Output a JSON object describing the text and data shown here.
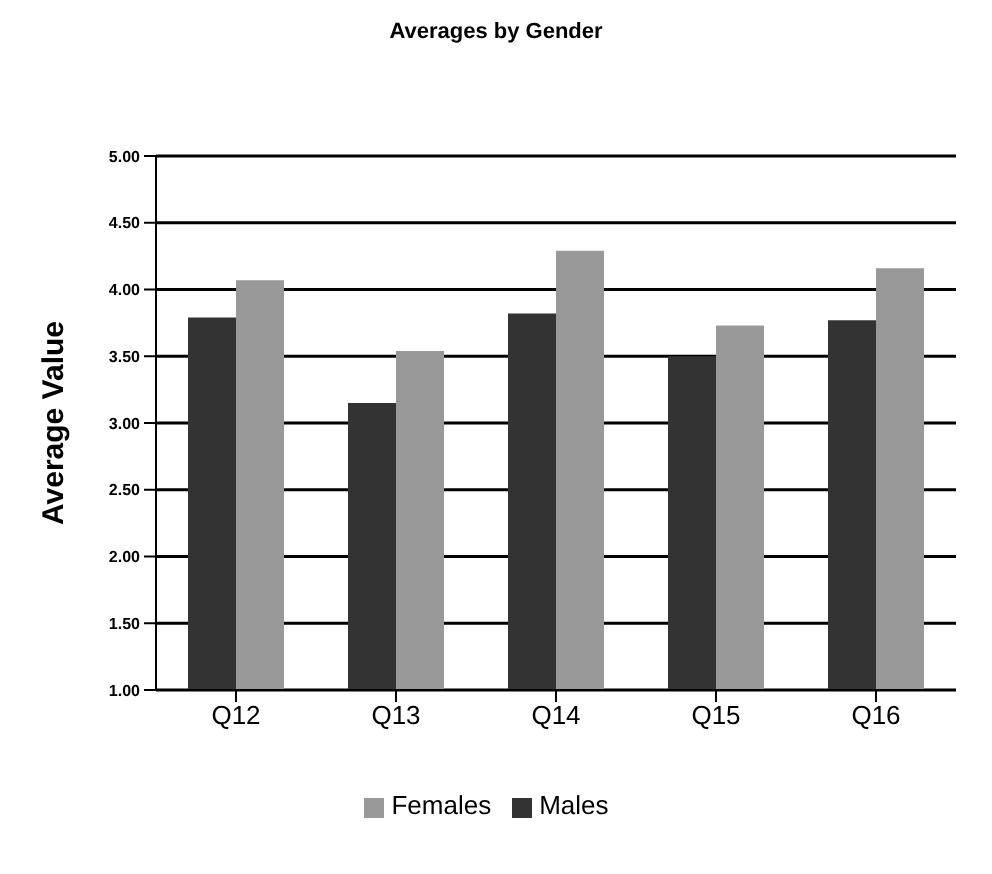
{
  "chart_data": {
    "type": "bar",
    "title": "Averages by Gender",
    "ylabel": "Average Value",
    "categories": [
      "Q12",
      "Q13",
      "Q14",
      "Q15",
      "Q16"
    ],
    "series": [
      {
        "name": "Males",
        "color": "#333333",
        "values": [
          3.79,
          3.15,
          3.82,
          3.5,
          3.77
        ]
      },
      {
        "name": "Females",
        "color": "#999999",
        "values": [
          4.07,
          3.54,
          4.29,
          3.73,
          4.16
        ]
      }
    ],
    "ylim": [
      1,
      5
    ],
    "yticks": [
      {
        "value": 1,
        "label": "1.00"
      },
      {
        "value": 1.5,
        "label": "1.50"
      },
      {
        "value": 2,
        "label": "2.00"
      },
      {
        "value": 2.5,
        "label": "2.50"
      },
      {
        "value": 3,
        "label": "3.00"
      },
      {
        "value": 3.5,
        "label": "3.50"
      },
      {
        "value": 4,
        "label": "4.00"
      },
      {
        "value": 4.5,
        "label": "4.50"
      },
      {
        "value": 5,
        "label": "5.00"
      }
    ],
    "grid": "y",
    "legend": "bottom"
  }
}
